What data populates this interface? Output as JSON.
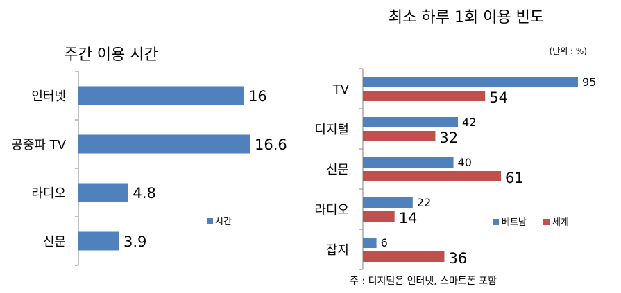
{
  "colors": {
    "blue": "#4F81BD",
    "red": "#C0504D",
    "axis": "#808080"
  },
  "chart_data": [
    {
      "type": "bar",
      "orientation": "horizontal",
      "title": "주간 이용 시간",
      "categories": [
        "인터넷",
        "공중파 TV",
        "라디오",
        "신문"
      ],
      "series": [
        {
          "name": "시간",
          "values": [
            16,
            16.6,
            4.8,
            3.9
          ],
          "color": "#4F81BD"
        }
      ],
      "xlim": [
        0,
        20
      ],
      "grid": false,
      "legend": "bottom-right"
    },
    {
      "type": "bar",
      "orientation": "horizontal",
      "title": "최소 하루 1회 이용 빈도",
      "unit_note": "(단위 : %)",
      "categories": [
        "TV",
        "디지털",
        "신문",
        "라디오",
        "잡지"
      ],
      "series": [
        {
          "name": "베트남",
          "values": [
            95,
            42,
            40,
            22,
            6
          ],
          "color": "#4F81BD"
        },
        {
          "name": "세계",
          "values": [
            54,
            32,
            61,
            14,
            36
          ],
          "color": "#C0504D"
        }
      ],
      "xlim": [
        0,
        95
      ],
      "grid": false,
      "legend": "bottom-right",
      "footnote": "주 : 디지털은 인터넷, 스마트폰 포함"
    }
  ]
}
